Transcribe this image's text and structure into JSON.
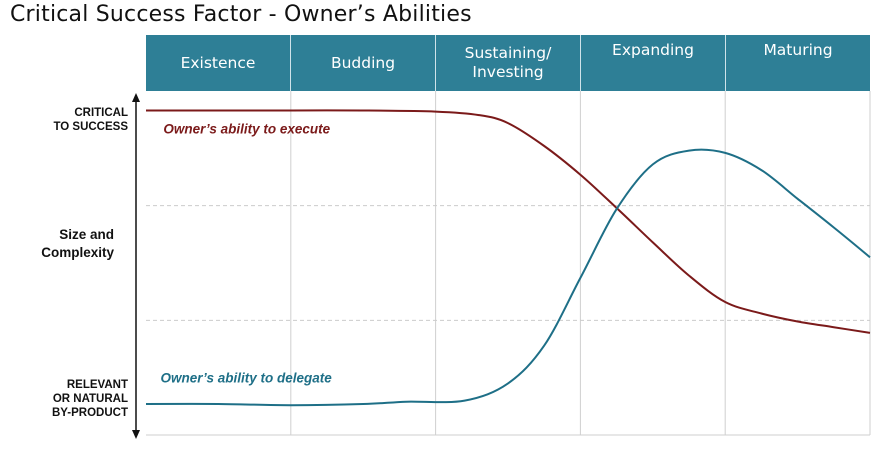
{
  "title": "Critical Success Factor - Owner’s Abilities",
  "chart_data": {
    "type": "line",
    "stages": [
      "Existence",
      "Budding",
      "Sustaining/\nInvesting",
      "Expanding",
      "Maturing"
    ],
    "ylabel": "Size and\nComplexity",
    "y_top_label": "CRITICAL\nTO SUCCESS",
    "y_bottom_label": "RELEVANT\nOR NATURAL\nBY-PRODUCT",
    "x_range": [
      0,
      5
    ],
    "y_range": [
      0,
      3
    ],
    "grid": "vertical stage dividers and dashed horizontal lines at y = 1 and y = 2",
    "series": [
      {
        "name": "Owner’s ability to execute",
        "color": "#7b1a1a",
        "points": [
          [
            0,
            2.83
          ],
          [
            0.5,
            2.83
          ],
          [
            1,
            2.83
          ],
          [
            1.5,
            2.83
          ],
          [
            2,
            2.82
          ],
          [
            2.3,
            2.79
          ],
          [
            2.5,
            2.72
          ],
          [
            2.75,
            2.52
          ],
          [
            3,
            2.27
          ],
          [
            3.25,
            1.98
          ],
          [
            3.5,
            1.68
          ],
          [
            3.75,
            1.39
          ],
          [
            4,
            1.16
          ],
          [
            4.25,
            1.06
          ],
          [
            4.5,
            0.99
          ],
          [
            4.75,
            0.94
          ],
          [
            5,
            0.89
          ]
        ]
      },
      {
        "name": "Owner’s ability to delegate",
        "color": "#1e6f87",
        "points": [
          [
            0,
            0.27
          ],
          [
            0.5,
            0.27
          ],
          [
            1,
            0.26
          ],
          [
            1.5,
            0.27
          ],
          [
            1.8,
            0.29
          ],
          [
            2.2,
            0.3
          ],
          [
            2.5,
            0.45
          ],
          [
            2.75,
            0.78
          ],
          [
            3,
            1.37
          ],
          [
            3.25,
            1.97
          ],
          [
            3.5,
            2.36
          ],
          [
            3.75,
            2.48
          ],
          [
            4,
            2.46
          ],
          [
            4.25,
            2.31
          ],
          [
            4.5,
            2.06
          ],
          [
            4.75,
            1.81
          ],
          [
            5,
            1.55
          ]
        ]
      }
    ]
  }
}
